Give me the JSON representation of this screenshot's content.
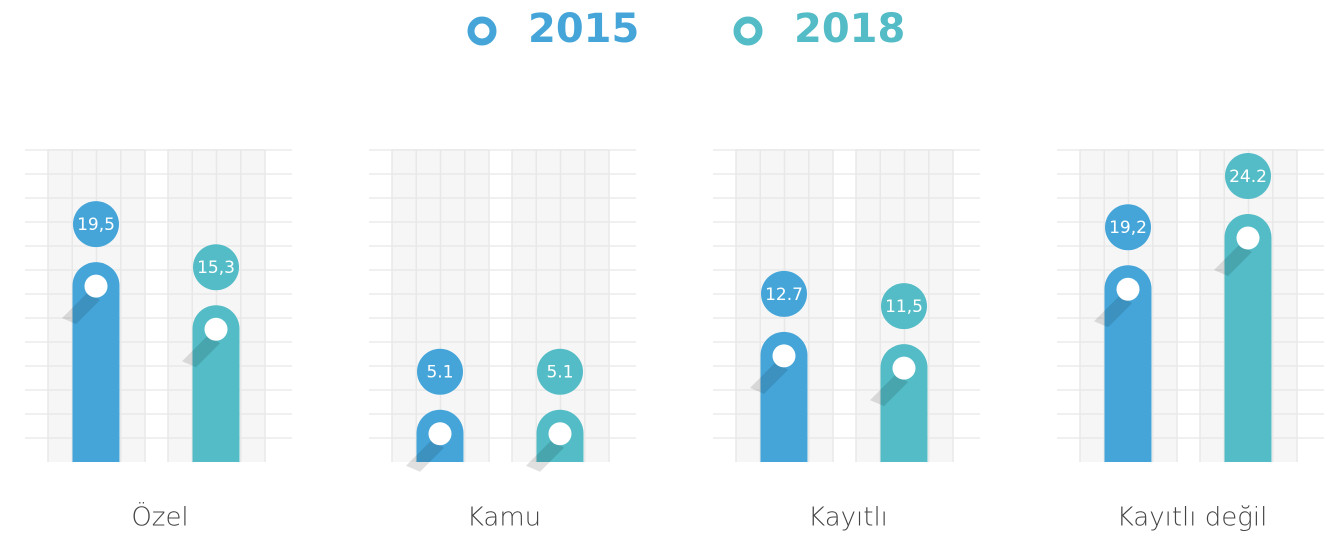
{
  "chart_data": {
    "type": "bar",
    "categories": [
      "Özel",
      "Kamu",
      "Kayıtlı",
      "Kayıtlı değil"
    ],
    "series": [
      {
        "name": "2015",
        "color": "#45a5d9",
        "values": [
          19.5,
          5.1,
          12.7,
          19.2
        ],
        "value_labels": [
          "19,5",
          "5.1",
          "12.7",
          "19,2"
        ]
      },
      {
        "name": "2018",
        "color": "#53bcc6",
        "values": [
          15.3,
          5.1,
          11.5,
          24.2
        ],
        "value_labels": [
          "15,3",
          "5.1",
          "11,5",
          "24.2"
        ]
      }
    ]
  }
}
